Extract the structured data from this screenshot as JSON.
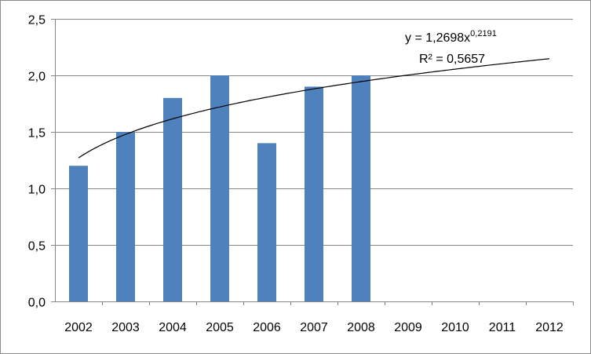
{
  "chart_data": {
    "type": "bar",
    "categories": [
      "2002",
      "2003",
      "2004",
      "2005",
      "2006",
      "2007",
      "2008",
      "2009",
      "2010",
      "2011",
      "2012"
    ],
    "series": [
      {
        "values": [
          1.2,
          1.5,
          1.8,
          2.0,
          1.4,
          1.9,
          2.0,
          null,
          null,
          null,
          null
        ]
      }
    ],
    "ylim": [
      0,
      2.5
    ],
    "yticks": [
      0,
      0.5,
      1.0,
      1.5,
      2.0,
      2.5
    ],
    "ytick_labels": [
      "0,0",
      "0,5",
      "1,0",
      "1,5",
      "2,0",
      "2,5"
    ],
    "grid": "horizontal",
    "legend": "none",
    "bar_color": "#4f81bd",
    "trendline": {
      "type": "power",
      "coefficient": 1.2698,
      "exponent": 0.2191,
      "equation_prefix": "y = 1,2698x",
      "equation_exponent": "0,2191",
      "r2_text": "R² = 0,5657",
      "color": "#000000"
    }
  }
}
